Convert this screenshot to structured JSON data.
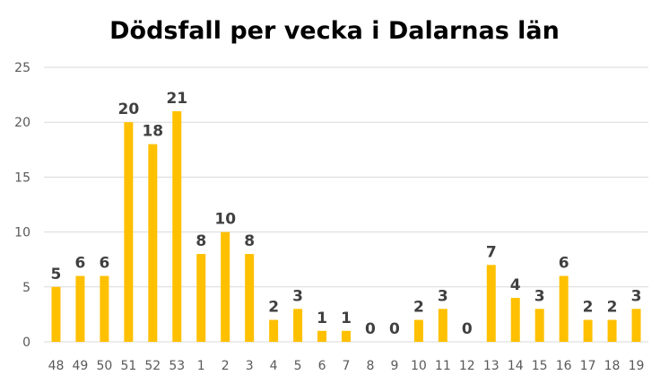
{
  "chart_data": {
    "type": "bar",
    "title": "Dödsfall per vecka i Dalarnas län",
    "xlabel": "",
    "ylabel": "",
    "categories": [
      "48",
      "49",
      "50",
      "51",
      "52",
      "53",
      "1",
      "2",
      "3",
      "4",
      "5",
      "6",
      "7",
      "8",
      "9",
      "10",
      "11",
      "12",
      "13",
      "14",
      "15",
      "16",
      "17",
      "18",
      "19"
    ],
    "values": [
      5,
      6,
      6,
      20,
      18,
      21,
      8,
      10,
      8,
      2,
      3,
      1,
      1,
      0,
      0,
      2,
      3,
      0,
      7,
      4,
      3,
      6,
      2,
      2,
      3
    ],
    "ylim": [
      0,
      25
    ],
    "yticks": [
      0,
      5,
      10,
      15,
      20,
      25
    ],
    "grid": true,
    "legend": "none",
    "bar_color": "#FFC000",
    "data_labels": true
  }
}
